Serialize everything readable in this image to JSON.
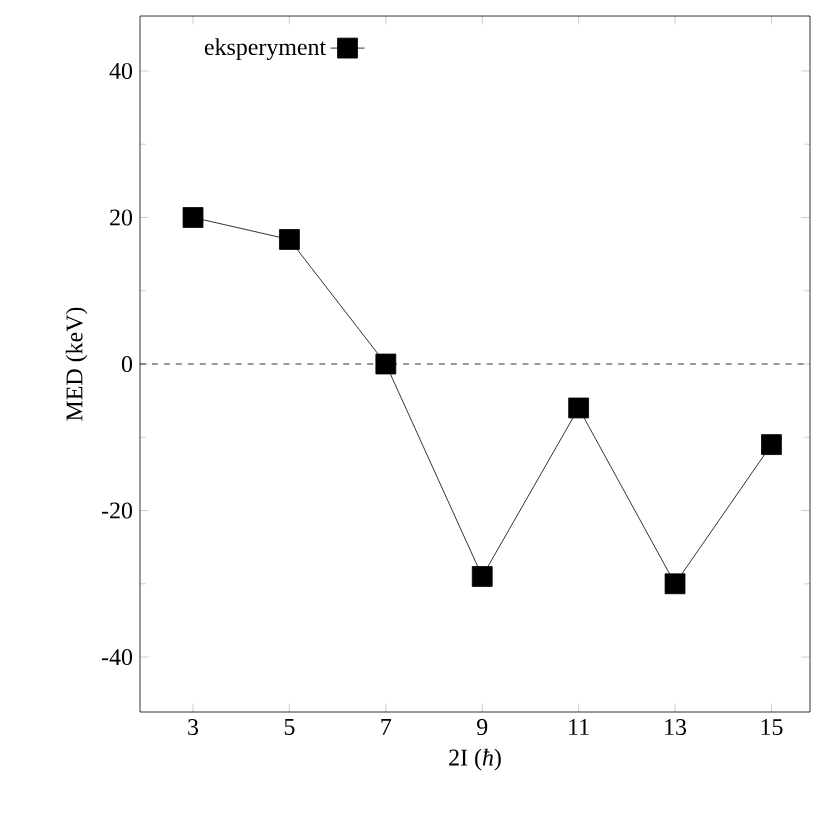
{
  "chart_data": {
    "type": "line",
    "xlabel": "2I (*ħ*)",
    "ylabel": "MED (keV)",
    "x": [
      3,
      5,
      7,
      9,
      11,
      13,
      15
    ],
    "series": [
      {
        "name": "eksperyment",
        "color": "#000000",
        "values": [
          20,
          17,
          0,
          -29,
          -6,
          -30,
          -11
        ]
      }
    ],
    "xlim": [
      1.9,
      15.8
    ],
    "ylim": [
      -47.5,
      47.5
    ],
    "xticks": [
      3,
      5,
      7,
      9,
      11,
      13,
      15
    ],
    "yticks": [
      -40,
      -20,
      0,
      20,
      40
    ],
    "ref_lines": [
      {
        "axis": "y",
        "value": 0,
        "line_style": "dashed"
      }
    ],
    "marker": "square",
    "line_style": "solid",
    "legend": "top left",
    "grid": false
  }
}
